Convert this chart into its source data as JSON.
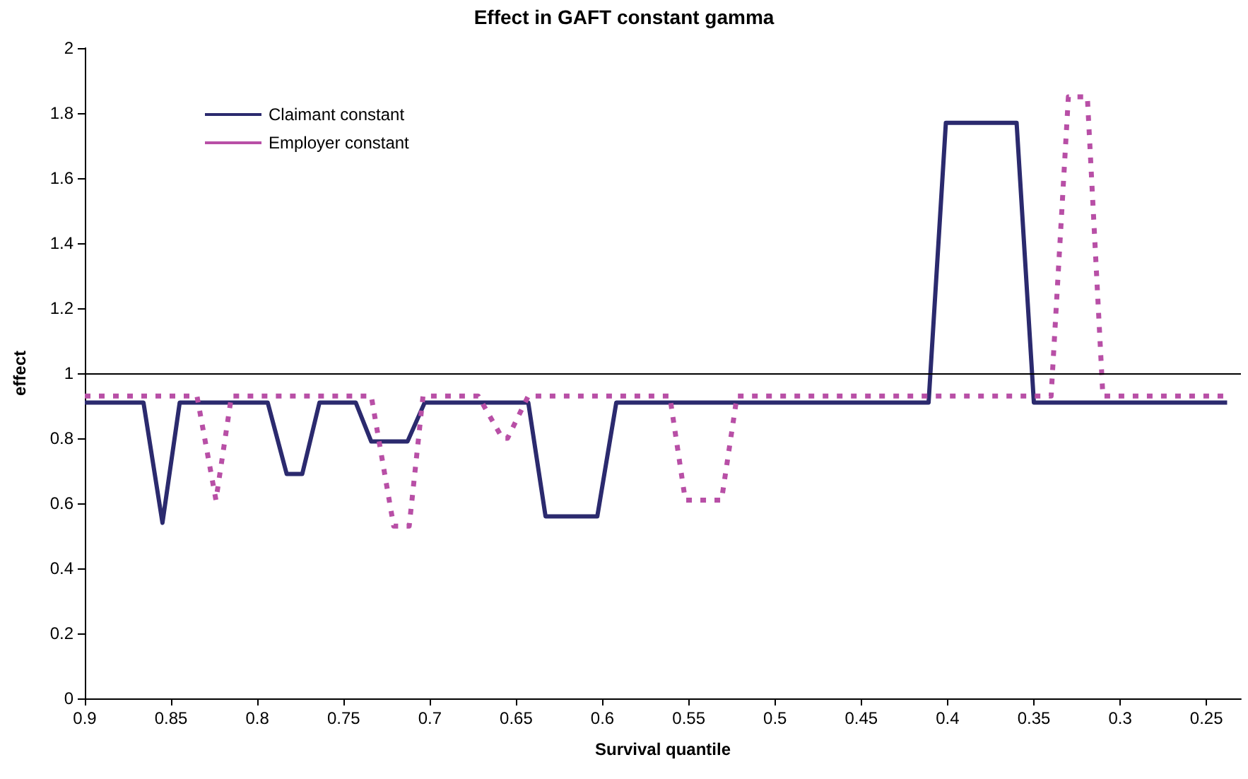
{
  "chart_data": {
    "type": "line",
    "title": "Effect in GAFT constant gamma",
    "xlabel": "Survival quantile",
    "ylabel": "effect",
    "xlim": [
      0.9,
      0.23
    ],
    "xticks": [
      0.9,
      0.85,
      0.8,
      0.75,
      0.7,
      0.65,
      0.6,
      0.55,
      0.5,
      0.45,
      0.4,
      0.35,
      0.3,
      0.25
    ],
    "ylim": [
      0,
      2
    ],
    "yticks": [
      0,
      0.2,
      0.4,
      0.6,
      0.8,
      1,
      1.2,
      1.4,
      1.6,
      1.8,
      2
    ],
    "grid": false,
    "legend": "top left",
    "marker": "none",
    "ref_lines": [
      {
        "axis": "y",
        "value": 1,
        "color": "#000000"
      }
    ],
    "series": [
      {
        "name": "Claimant constant",
        "color": "#2b2a6e",
        "line_style": "solid",
        "x": [
          0.9,
          0.866,
          0.855,
          0.845,
          0.794,
          0.783,
          0.774,
          0.764,
          0.743,
          0.734,
          0.713,
          0.703,
          0.643,
          0.633,
          0.603,
          0.592,
          0.411,
          0.401,
          0.36,
          0.35,
          0.238
        ],
        "values": [
          0.91,
          0.91,
          0.54,
          0.91,
          0.91,
          0.69,
          0.69,
          0.91,
          0.91,
          0.79,
          0.79,
          0.91,
          0.91,
          0.56,
          0.56,
          0.91,
          0.91,
          1.77,
          1.77,
          0.91,
          0.91
        ]
      },
      {
        "name": "Employer constant",
        "color": "#b84fa6",
        "line_style": "dashed",
        "x": [
          0.9,
          0.835,
          0.824,
          0.815,
          0.734,
          0.721,
          0.712,
          0.704,
          0.672,
          0.658,
          0.655,
          0.643,
          0.561,
          0.552,
          0.531,
          0.522,
          0.34,
          0.33,
          0.319,
          0.31,
          0.238
        ],
        "values": [
          0.93,
          0.93,
          0.61,
          0.93,
          0.93,
          0.53,
          0.53,
          0.93,
          0.93,
          0.8,
          0.8,
          0.93,
          0.93,
          0.61,
          0.61,
          0.93,
          0.93,
          1.85,
          1.85,
          0.93,
          0.93
        ]
      }
    ]
  }
}
